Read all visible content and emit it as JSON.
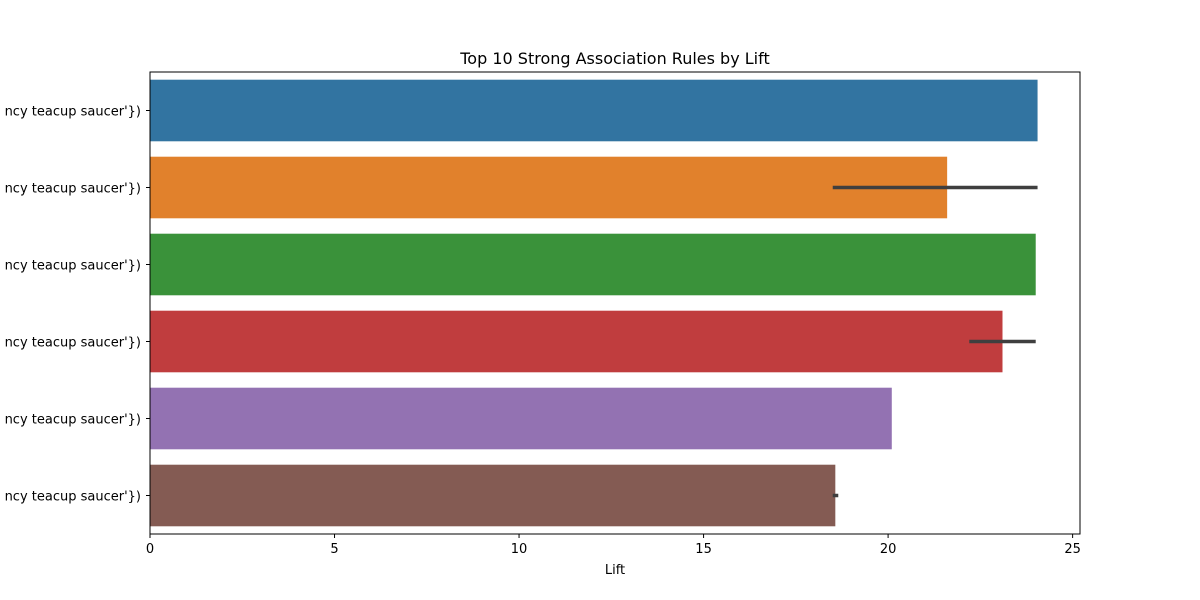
{
  "chart_data": {
    "type": "bar",
    "orientation": "horizontal",
    "title": "Top 10 Strong Association Rules by Lift",
    "xlabel": "Lift",
    "ylabel": "",
    "xlim": [
      0,
      25.2
    ],
    "xticks": [
      0,
      5,
      10,
      15,
      20,
      25
    ],
    "grid": false,
    "categories": [
      "ncy teacup saucer'})",
      "ncy teacup saucer'})",
      "ncy teacup saucer'})",
      "ncy teacup saucer'})",
      "ncy teacup saucer'})",
      "ncy teacup saucer'})"
    ],
    "values": [
      24.05,
      21.6,
      24.0,
      23.1,
      20.1,
      18.57
    ],
    "error_bars": [
      null,
      [
        18.5,
        24.05
      ],
      null,
      [
        22.2,
        24.0
      ],
      null,
      [
        18.5,
        18.65
      ]
    ],
    "colors": [
      "#3274a1",
      "#e1812c",
      "#3a923a",
      "#c03d3e",
      "#9372b2",
      "#845b53"
    ]
  }
}
